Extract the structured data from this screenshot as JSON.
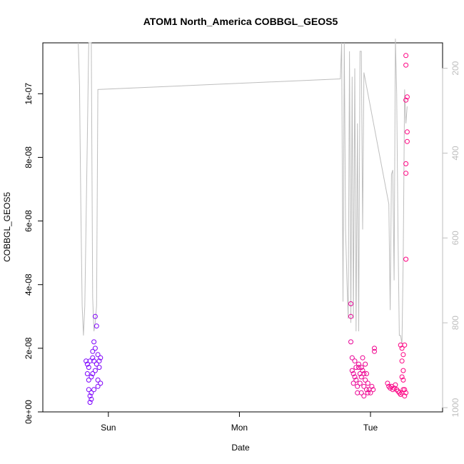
{
  "chart_data": {
    "type": "scatter",
    "title": "ATOM1 North_America COBBGL_GEOS5",
    "xlabel": "Date",
    "ylabel": "COBBGL_GEOS5",
    "x_ticks": [
      "Sun",
      "Mon",
      "Tue"
    ],
    "y_ticks": [
      "0e+00",
      "2e-08",
      "4e-08",
      "6e-08",
      "8e-08",
      "1e-07"
    ],
    "y_tick_values": [
      0,
      2e-08,
      4e-08,
      6e-08,
      8e-08,
      1e-07
    ],
    "ylim": [
      0,
      1.16e-07
    ],
    "right_axis": {
      "ticks": [
        "200",
        "400",
        "600",
        "800",
        "1000"
      ],
      "tick_values": [
        200,
        400,
        600,
        800,
        1000
      ],
      "range_top_to_bottom": [
        140,
        1010
      ],
      "line_color": "#bebebe"
    },
    "colors": {
      "start": "#7a00ff",
      "end": "#ff0080"
    },
    "x_domain_days": [
      0,
      3.05
    ],
    "series": [
      {
        "values": [
          {
            "x": 0.33,
            "y": 1.6e-08
          },
          {
            "x": 0.34,
            "y": 1.5e-08
          },
          {
            "x": 0.34,
            "y": 1.2e-08
          },
          {
            "x": 0.35,
            "y": 1e-08
          },
          {
            "x": 0.35,
            "y": 7e-09
          },
          {
            "x": 0.36,
            "y": 5e-09
          },
          {
            "x": 0.36,
            "y": 3e-09
          },
          {
            "x": 0.37,
            "y": 4e-09
          },
          {
            "x": 0.37,
            "y": 6e-09
          },
          {
            "x": 0.38,
            "y": 1.7e-08
          },
          {
            "x": 0.38,
            "y": 1.9e-08
          },
          {
            "x": 0.39,
            "y": 2.2e-08
          },
          {
            "x": 0.39,
            "y": 1.6e-08
          },
          {
            "x": 0.4,
            "y": 1.3e-08
          },
          {
            "x": 0.4,
            "y": 3e-08
          },
          {
            "x": 0.41,
            "y": 2.7e-08
          },
          {
            "x": 0.41,
            "y": 1.5e-08
          },
          {
            "x": 0.42,
            "y": 1e-08
          },
          {
            "x": 0.42,
            "y": 8e-09
          },
          {
            "x": 0.43,
            "y": 1.6e-08
          },
          {
            "x": 0.43,
            "y": 1.4e-08
          },
          {
            "x": 0.44,
            "y": 1.7e-08
          },
          {
            "x": 0.44,
            "y": 9e-09
          },
          {
            "x": 0.35,
            "y": 1.4e-08
          },
          {
            "x": 0.37,
            "y": 1.1e-08
          },
          {
            "x": 0.39,
            "y": 7e-09
          },
          {
            "x": 0.4,
            "y": 2e-08
          },
          {
            "x": 0.42,
            "y": 1.8e-08
          },
          {
            "x": 0.36,
            "y": 1.6e-08
          },
          {
            "x": 0.38,
            "y": 1.2e-08
          },
          {
            "x": 2.35,
            "y": 3.4e-08
          },
          {
            "x": 2.35,
            "y": 3e-08
          },
          {
            "x": 2.35,
            "y": 2.2e-08
          },
          {
            "x": 2.36,
            "y": 1.7e-08
          },
          {
            "x": 2.36,
            "y": 1.3e-08
          },
          {
            "x": 2.37,
            "y": 1.2e-08
          },
          {
            "x": 2.38,
            "y": 1.6e-08
          },
          {
            "x": 2.38,
            "y": 1.1e-08
          },
          {
            "x": 2.39,
            "y": 1e-08
          },
          {
            "x": 2.4,
            "y": 8e-09
          },
          {
            "x": 2.4,
            "y": 6e-09
          },
          {
            "x": 2.41,
            "y": 1.5e-08
          },
          {
            "x": 2.41,
            "y": 1.4e-08
          },
          {
            "x": 2.42,
            "y": 1.2e-08
          },
          {
            "x": 2.42,
            "y": 9e-09
          },
          {
            "x": 2.43,
            "y": 6e-09
          },
          {
            "x": 2.43,
            "y": 1.1e-08
          },
          {
            "x": 2.44,
            "y": 1.7e-08
          },
          {
            "x": 2.44,
            "y": 1.3e-08
          },
          {
            "x": 2.45,
            "y": 5e-09
          },
          {
            "x": 2.45,
            "y": 8e-09
          },
          {
            "x": 2.46,
            "y": 1.5e-08
          },
          {
            "x": 2.46,
            "y": 1e-08
          },
          {
            "x": 2.47,
            "y": 7e-09
          },
          {
            "x": 2.47,
            "y": 1.2e-08
          },
          {
            "x": 2.48,
            "y": 6e-09
          },
          {
            "x": 2.48,
            "y": 9e-09
          },
          {
            "x": 2.49,
            "y": 7e-09
          },
          {
            "x": 2.5,
            "y": 6e-09
          },
          {
            "x": 2.51,
            "y": 8e-09
          },
          {
            "x": 2.52,
            "y": 7e-09
          },
          {
            "x": 2.53,
            "y": 2e-08
          },
          {
            "x": 2.53,
            "y": 1.9e-08
          },
          {
            "x": 2.39,
            "y": 1.4e-08
          },
          {
            "x": 2.37,
            "y": 9e-09
          },
          {
            "x": 2.43,
            "y": 1.4e-08
          },
          {
            "x": 2.45,
            "y": 1.2e-08
          },
          {
            "x": 2.63,
            "y": 9e-09
          },
          {
            "x": 2.64,
            "y": 8e-09
          },
          {
            "x": 2.65,
            "y": 7.5e-09
          },
          {
            "x": 2.66,
            "y": 8e-09
          },
          {
            "x": 2.67,
            "y": 7e-09
          },
          {
            "x": 2.68,
            "y": 7.5e-09
          },
          {
            "x": 2.69,
            "y": 8.5e-09
          },
          {
            "x": 2.7,
            "y": 7e-09
          },
          {
            "x": 2.71,
            "y": 6.5e-09
          },
          {
            "x": 2.72,
            "y": 6e-09
          },
          {
            "x": 2.73,
            "y": 5.5e-09
          },
          {
            "x": 2.74,
            "y": 6e-09
          },
          {
            "x": 2.75,
            "y": 7e-09
          },
          {
            "x": 2.76,
            "y": 5e-09
          },
          {
            "x": 2.77,
            "y": 6e-09
          },
          {
            "x": 2.73,
            "y": 2.1e-08
          },
          {
            "x": 2.74,
            "y": 2e-08
          },
          {
            "x": 2.75,
            "y": 1.8e-08
          },
          {
            "x": 2.74,
            "y": 1.6e-08
          },
          {
            "x": 2.75,
            "y": 1.3e-08
          },
          {
            "x": 2.76,
            "y": 2.1e-08
          },
          {
            "x": 2.77,
            "y": 4.8e-08
          },
          {
            "x": 2.77,
            "y": 7.5e-08
          },
          {
            "x": 2.77,
            "y": 7.8e-08
          },
          {
            "x": 2.78,
            "y": 8.5e-08
          },
          {
            "x": 2.78,
            "y": 8.8e-08
          },
          {
            "x": 2.77,
            "y": 9.8e-08
          },
          {
            "x": 2.78,
            "y": 9.9e-08
          },
          {
            "x": 2.77,
            "y": 1.09e-07
          },
          {
            "x": 2.77,
            "y": 1.12e-07
          },
          {
            "x": 2.74,
            "y": 1.1e-08
          },
          {
            "x": 2.75,
            "y": 1e-08
          },
          {
            "x": 2.76,
            "y": 7e-09
          }
        ],
        "pressure_line": [
          {
            "x": 0.27,
            "y": 140
          },
          {
            "x": 0.28,
            "y": 240
          },
          {
            "x": 0.29,
            "y": 520
          },
          {
            "x": 0.3,
            "y": 760
          },
          {
            "x": 0.31,
            "y": 830
          },
          {
            "x": 0.32,
            "y": 760
          },
          {
            "x": 0.33,
            "y": 560
          },
          {
            "x": 0.34,
            "y": 360
          },
          {
            "x": 0.35,
            "y": 140
          },
          {
            "x": 0.37,
            "y": 140
          },
          {
            "x": 0.38,
            "y": 740
          },
          {
            "x": 0.39,
            "y": 820
          },
          {
            "x": 0.4,
            "y": 800
          },
          {
            "x": 0.41,
            "y": 760
          },
          {
            "x": 0.42,
            "y": 250
          },
          {
            "x": 2.27,
            "y": 225
          },
          {
            "x": 2.28,
            "y": 140
          },
          {
            "x": 2.29,
            "y": 750
          },
          {
            "x": 2.3,
            "y": 140
          },
          {
            "x": 2.31,
            "y": 580
          },
          {
            "x": 2.32,
            "y": 700
          },
          {
            "x": 2.33,
            "y": 790
          },
          {
            "x": 2.34,
            "y": 160
          },
          {
            "x": 2.35,
            "y": 800
          },
          {
            "x": 2.36,
            "y": 220
          },
          {
            "x": 2.37,
            "y": 790
          },
          {
            "x": 2.38,
            "y": 200
          },
          {
            "x": 2.39,
            "y": 820
          },
          {
            "x": 2.4,
            "y": 330
          },
          {
            "x": 2.41,
            "y": 820
          },
          {
            "x": 2.42,
            "y": 160
          },
          {
            "x": 2.43,
            "y": 160
          },
          {
            "x": 2.44,
            "y": 580
          },
          {
            "x": 2.45,
            "y": 210
          },
          {
            "x": 2.64,
            "y": 520
          },
          {
            "x": 2.65,
            "y": 770
          },
          {
            "x": 2.66,
            "y": 450
          },
          {
            "x": 2.67,
            "y": 440
          },
          {
            "x": 2.68,
            "y": 700
          },
          {
            "x": 2.69,
            "y": 130
          },
          {
            "x": 2.7,
            "y": 260
          },
          {
            "x": 2.71,
            "y": 600
          },
          {
            "x": 2.72,
            "y": 830
          },
          {
            "x": 2.73,
            "y": 830
          },
          {
            "x": 2.74,
            "y": 850
          },
          {
            "x": 2.75,
            "y": 640
          },
          {
            "x": 2.76,
            "y": 250
          },
          {
            "x": 2.77,
            "y": 330
          },
          {
            "x": 2.78,
            "y": 290
          }
        ]
      }
    ]
  }
}
